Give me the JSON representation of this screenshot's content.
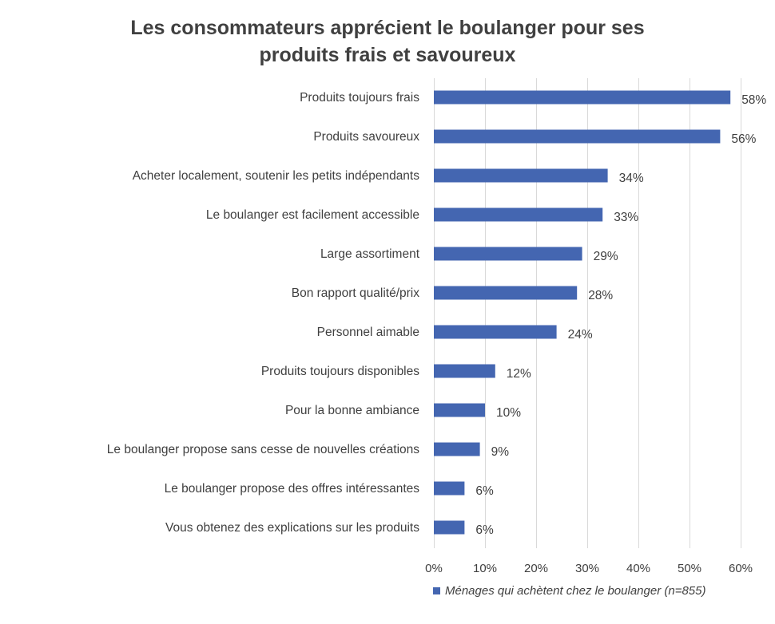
{
  "chart_data": {
    "type": "bar",
    "orientation": "horizontal",
    "title_line1": "Les consommateurs apprécient le boulanger pour ses",
    "title_line2": "produits frais et savoureux",
    "categories": [
      "Produits toujours frais",
      "Produits savoureux",
      "Acheter localement, soutenir les petits indépendants",
      "Le boulanger est facilement accessible",
      "Large assortiment",
      "Bon rapport qualité/prix",
      "Personnel aimable",
      "Produits toujours disponibles",
      "Pour la bonne ambiance",
      "Le boulanger propose sans cesse de nouvelles créations",
      "Le boulanger propose des offres intéressantes",
      "Vous obtenez des explications sur les produits"
    ],
    "values": [
      58,
      56,
      34,
      33,
      29,
      28,
      24,
      12,
      10,
      9,
      6,
      6
    ],
    "value_labels": [
      "58%",
      "56%",
      "34%",
      "33%",
      "29%",
      "28%",
      "24%",
      "12%",
      "10%",
      "9%",
      "6%",
      "6%"
    ],
    "xlim": [
      0,
      60
    ],
    "x_ticks": [
      0,
      10,
      20,
      30,
      40,
      50,
      60
    ],
    "x_tick_labels": [
      "0%",
      "10%",
      "20%",
      "30%",
      "40%",
      "50%",
      "60%"
    ],
    "grid": true,
    "series_name": "Ménages qui achètent chez le boulanger (n=855)",
    "legend_position": "bottom",
    "color": "#4466b1"
  }
}
